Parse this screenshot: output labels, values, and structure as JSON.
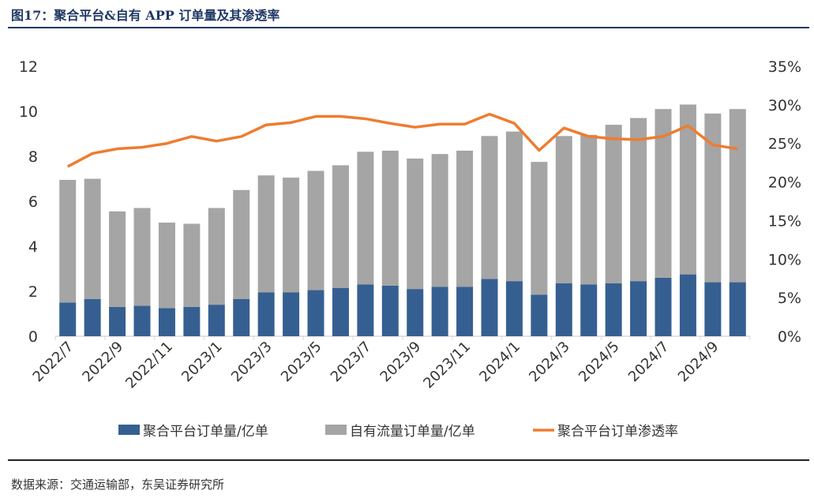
{
  "title": "图17：聚合平台&自有 APP 订单量及其渗透率",
  "source": "数据来源：交通运输部，东吴证券研究所",
  "chart_data": {
    "type": "bar",
    "stacked": true,
    "categories": [
      "2022/7",
      "2022/8",
      "2022/9",
      "2022/10",
      "2022/11",
      "2022/12",
      "2023/1",
      "2023/2",
      "2023/3",
      "2023/4",
      "2023/5",
      "2023/6",
      "2023/7",
      "2023/8",
      "2023/9",
      "2023/10",
      "2023/11",
      "2023/12",
      "2024/1",
      "2024/2",
      "2024/3",
      "2024/4",
      "2024/5",
      "2024/6",
      "2024/7",
      "2024/8",
      "2024/9",
      "2024/10"
    ],
    "x_tick_labels": [
      "2022/7",
      "2022/9",
      "2022/11",
      "2023/1",
      "2023/3",
      "2023/5",
      "2023/7",
      "2023/9",
      "2023/11",
      "2024/1",
      "2024/3",
      "2024/5",
      "2024/7",
      "2024/9"
    ],
    "series": [
      {
        "name": "聚合平台订单量/亿单",
        "type": "bar",
        "axis": "left",
        "color": "#365f91",
        "values": [
          1.5,
          1.65,
          1.3,
          1.35,
          1.25,
          1.3,
          1.4,
          1.65,
          1.95,
          1.95,
          2.05,
          2.15,
          2.3,
          2.25,
          2.1,
          2.2,
          2.2,
          2.55,
          2.45,
          1.85,
          2.35,
          2.3,
          2.35,
          2.45,
          2.6,
          2.75,
          2.4,
          2.4
        ]
      },
      {
        "name": "自有流量订单量/亿单",
        "type": "bar",
        "axis": "left",
        "color": "#a5a5a5",
        "values": [
          5.45,
          5.35,
          4.25,
          4.35,
          3.8,
          3.7,
          4.3,
          4.85,
          5.2,
          5.1,
          5.3,
          5.45,
          5.9,
          6.0,
          5.8,
          5.9,
          6.05,
          6.35,
          6.65,
          5.9,
          6.55,
          6.65,
          7.05,
          7.25,
          7.5,
          7.55,
          7.5,
          7.7
        ]
      },
      {
        "name": "聚合平台订单渗透率",
        "type": "line",
        "axis": "right",
        "color": "#ed7d31",
        "values": [
          22.0,
          23.7,
          24.3,
          24.5,
          25.0,
          25.9,
          25.3,
          25.9,
          27.4,
          27.7,
          28.5,
          28.5,
          28.2,
          27.6,
          27.1,
          27.5,
          27.5,
          28.8,
          27.6,
          24.1,
          27.0,
          25.9,
          25.6,
          25.5,
          25.9,
          27.3,
          24.8,
          24.3
        ]
      }
    ],
    "left_axis": {
      "ylim": [
        0,
        12
      ],
      "ticks": [
        "0",
        "2",
        "4",
        "6",
        "8",
        "10",
        "12"
      ]
    },
    "right_axis": {
      "ylim": [
        0,
        35
      ],
      "ticks": [
        "0%",
        "5%",
        "10%",
        "15%",
        "20%",
        "25%",
        "30%",
        "35%"
      ]
    },
    "legend_position": "bottom"
  }
}
